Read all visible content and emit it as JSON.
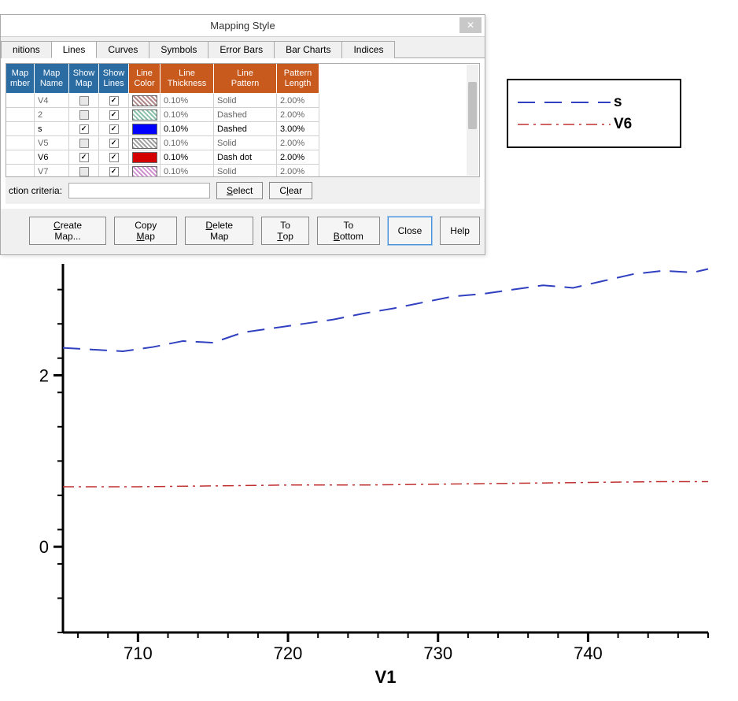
{
  "dialog": {
    "title": "Mapping Style",
    "tabs": [
      "nitions",
      "Lines",
      "Curves",
      "Symbols",
      "Error Bars",
      "Bar Charts",
      "Indices"
    ],
    "active_tab": 1,
    "headers": {
      "map_number": "Map\nmber",
      "map_name": "Map\nName",
      "show_map": "Show\nMap",
      "show_lines": "Show\nLines",
      "line_color": "Line\nColor",
      "line_thickness": "Line\nThickness",
      "line_pattern": "Line\nPattern",
      "pattern_length": "Pattern\nLength"
    },
    "rows": [
      {
        "num": "",
        "name": "V4",
        "show_map": false,
        "show_lines": true,
        "color": "#b08888",
        "thickness": "0.10%",
        "pattern": "Solid",
        "length": "2.00%",
        "active": false,
        "hatch": true
      },
      {
        "num": "",
        "name": "2",
        "show_map": false,
        "show_lines": true,
        "color": "#88c0a8",
        "thickness": "0.10%",
        "pattern": "Dashed",
        "length": "2.00%",
        "active": false,
        "hatch": true
      },
      {
        "num": "",
        "name": "s",
        "show_map": true,
        "show_lines": true,
        "color": "#0000ff",
        "thickness": "0.10%",
        "pattern": "Dashed",
        "length": "3.00%",
        "active": true,
        "hatch": false
      },
      {
        "num": "",
        "name": "V5",
        "show_map": false,
        "show_lines": true,
        "color": "#a0a0a0",
        "thickness": "0.10%",
        "pattern": "Solid",
        "length": "2.00%",
        "active": false,
        "hatch": true
      },
      {
        "num": "",
        "name": "V6",
        "show_map": true,
        "show_lines": true,
        "color": "#d40000",
        "thickness": "0.10%",
        "pattern": "Dash dot",
        "length": "2.00%",
        "active": true,
        "hatch": false
      },
      {
        "num": "",
        "name": "V7",
        "show_map": false,
        "show_lines": true,
        "color": "#d090d0",
        "thickness": "0.10%",
        "pattern": "Solid",
        "length": "2.00%",
        "active": false,
        "hatch": true
      }
    ],
    "criteria_label": "ction criteria:",
    "select_btn": "Select",
    "clear_btn": "Clear",
    "buttons": {
      "create": "Create Map...",
      "copy": "Copy Map",
      "delete": "Delete Map",
      "top": "To Top",
      "bottom": "To Bottom",
      "close": "Close",
      "help": "Help"
    }
  },
  "chart": {
    "xlabel": "V1",
    "xlim": [
      705,
      748
    ],
    "ylim": [
      -1,
      3.3
    ],
    "xticks": [
      710,
      720,
      730,
      740
    ],
    "yticks": [
      0,
      2
    ],
    "xminor_step": 2,
    "yminor_step": 0.4,
    "axis_color": "#000000",
    "axis_width": 3,
    "tick_fontsize": 22,
    "label_fontsize": 24,
    "series": [
      {
        "name": "s",
        "color": "#3040c0",
        "width": 2,
        "dash": "22,12",
        "points": [
          [
            705,
            2.32
          ],
          [
            707,
            2.3
          ],
          [
            709,
            2.28
          ],
          [
            711,
            2.33
          ],
          [
            713,
            2.4
          ],
          [
            715,
            2.38
          ],
          [
            717,
            2.5
          ],
          [
            719,
            2.55
          ],
          [
            721,
            2.6
          ],
          [
            723,
            2.65
          ],
          [
            725,
            2.72
          ],
          [
            727,
            2.78
          ],
          [
            729,
            2.85
          ],
          [
            731,
            2.92
          ],
          [
            733,
            2.95
          ],
          [
            735,
            3.0
          ],
          [
            737,
            3.05
          ],
          [
            739,
            3.02
          ],
          [
            741,
            3.1
          ],
          [
            743,
            3.18
          ],
          [
            745,
            3.22
          ],
          [
            747,
            3.2
          ],
          [
            748,
            3.24
          ]
        ]
      },
      {
        "name": "V6",
        "color": "#c03030",
        "width": 1.5,
        "dash": "14,6,3,6",
        "points": [
          [
            705,
            0.7
          ],
          [
            710,
            0.7
          ],
          [
            715,
            0.71
          ],
          [
            720,
            0.72
          ],
          [
            725,
            0.72
          ],
          [
            730,
            0.73
          ],
          [
            735,
            0.74
          ],
          [
            740,
            0.75
          ],
          [
            745,
            0.76
          ],
          [
            748,
            0.76
          ]
        ]
      }
    ]
  },
  "legend": {
    "items": [
      {
        "label": "s",
        "color": "#3040c0",
        "dash": "22,12",
        "width": 2
      },
      {
        "label": "V6",
        "color": "#c03030",
        "dash": "14,6,3,6",
        "width": 1.5
      }
    ]
  }
}
